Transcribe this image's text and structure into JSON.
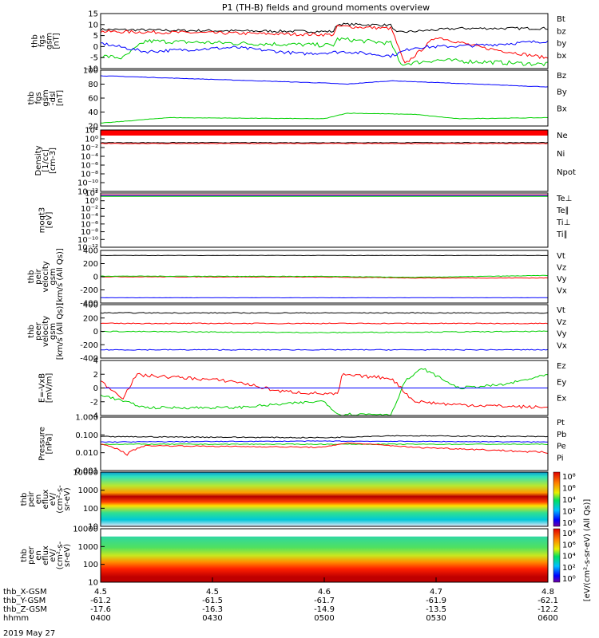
{
  "title": "P1 (TH-B) fields and ground moments overview",
  "colors": {
    "black": "#000000",
    "red": "#ff0000",
    "green": "#00d000",
    "blue": "#0000ff",
    "yellow": "#d8d000"
  },
  "panels": [
    {
      "key": "fgs",
      "ylabel": [
        "thb",
        "fgs",
        "gsm",
        "[nT]"
      ],
      "ticks": [
        "15",
        "10",
        "5",
        "0",
        "-5",
        "-10"
      ],
      "legend": [
        {
          "t": "Bt",
          "c": "black"
        },
        {
          "t": "bz",
          "c": "red"
        },
        {
          "t": "by",
          "c": "green"
        },
        {
          "t": "bx",
          "c": "blue"
        }
      ]
    },
    {
      "key": "fgsdsl",
      "ylabel": [
        "thb",
        "fgs",
        "gsm",
        "-dsl",
        "[nT]"
      ],
      "ticks": [
        "100",
        "80",
        "60",
        "40",
        "20"
      ],
      "legend": [
        {
          "t": "Bz",
          "c": "red"
        },
        {
          "t": "By",
          "c": "green"
        },
        {
          "t": "Bx",
          "c": "blue"
        }
      ]
    },
    {
      "key": "density",
      "ylabel": [
        "Density",
        "[1/cc]",
        "[cm-3]"
      ],
      "ticks": [
        "10²",
        "10⁰",
        "10⁻²",
        "10⁻⁴",
        "10⁻⁶",
        "10⁻⁸",
        "10⁻¹⁰",
        "10⁻¹²"
      ],
      "legend": [
        {
          "t": "Ne",
          "c": "red"
        },
        {
          "t": "Ni",
          "c": "black"
        },
        {
          "t": "Npot",
          "c": "blue"
        }
      ]
    },
    {
      "key": "temp",
      "ylabel": [
        "moqt3",
        "[eV]"
      ],
      "ticks": [
        "10²",
        "10⁰",
        "10⁻²",
        "10⁻⁴",
        "10⁻⁶",
        "10⁻⁸",
        "10⁻¹⁰",
        "10⁻¹²"
      ],
      "legend": [
        {
          "t": "Te⊥",
          "c": "red"
        },
        {
          "t": "Te∥",
          "c": "black"
        },
        {
          "t": "Ti⊥",
          "c": "yellow"
        },
        {
          "t": "Ti∥",
          "c": "green"
        }
      ]
    },
    {
      "key": "peir",
      "ylabel": [
        "thb",
        "peir",
        "velocity",
        "gsm",
        "[km/s (All Qs)]"
      ],
      "ticks": [
        "400",
        "200",
        "0",
        "-200",
        "-400"
      ],
      "legend": [
        {
          "t": "Vt",
          "c": "black"
        },
        {
          "t": "Vz",
          "c": "red"
        },
        {
          "t": "Vy",
          "c": "green"
        },
        {
          "t": "Vx",
          "c": "blue"
        }
      ]
    },
    {
      "key": "peer",
      "ylabel": [
        "thb",
        "peer",
        "velocity",
        "gsm",
        "[km/s (All Qs)]"
      ],
      "ticks": [
        "400",
        "200",
        "0",
        "-200",
        "-400"
      ],
      "legend": [
        {
          "t": "Vt",
          "c": "black"
        },
        {
          "t": "Vz",
          "c": "red"
        },
        {
          "t": "Vy",
          "c": "green"
        },
        {
          "t": "Vx",
          "c": "blue"
        }
      ]
    },
    {
      "key": "efield",
      "ylabel": [
        "E=-VxB",
        "[mV/m]"
      ],
      "ticks": [
        "4",
        "2",
        "0",
        "-2",
        "-4"
      ],
      "legend": [
        {
          "t": "Ez",
          "c": "red"
        },
        {
          "t": "Ey",
          "c": "green"
        },
        {
          "t": "Ex",
          "c": "blue"
        }
      ]
    },
    {
      "key": "pressure",
      "ylabel": [
        "Pressure",
        "[nPa]"
      ],
      "ticks": [
        "1.000",
        "0.100",
        "0.010",
        "0.001"
      ],
      "legend": [
        {
          "t": "Pt",
          "c": "black"
        },
        {
          "t": "Pb",
          "c": "red"
        },
        {
          "t": "Pe",
          "c": "green"
        },
        {
          "t": "Pi",
          "c": "blue"
        }
      ]
    },
    {
      "key": "peirspec",
      "ylabel": [
        "thb",
        "peir",
        "en",
        "eflux",
        "eV/",
        "(cm²-s-",
        "sr-eV)"
      ],
      "ticks": [
        "10000",
        "1000",
        "100",
        "10"
      ],
      "legend": []
    },
    {
      "key": "peerspec",
      "ylabel": [
        "thb",
        "peer",
        "en",
        "eflux",
        "eV/",
        "(cm²-s-",
        "sr-eV)"
      ],
      "ticks": [
        "10000",
        "1000",
        "100",
        "10"
      ],
      "legend": []
    }
  ],
  "colorbar": {
    "ticks": [
      "10⁸",
      "10⁶",
      "10⁴",
      "10²",
      "10⁰"
    ],
    "label": "[eV/(cm²-s-sr-eV) (All Qs)]"
  },
  "xaxis": {
    "rows": [
      {
        "label": "thb_X-GSM",
        "values": [
          "4.5",
          "4.5",
          "4.6",
          "4.7",
          "4.8"
        ]
      },
      {
        "label": "thb_Y-GSM",
        "values": [
          "-61.2",
          "-61.5",
          "-61.7",
          "-61.9",
          "-62.1"
        ]
      },
      {
        "label": "thb_Z-GSM",
        "values": [
          "-17.6",
          "-16.3",
          "-14.9",
          "-13.5",
          "-12.2"
        ]
      },
      {
        "label": "hhmm",
        "values": [
          "0400",
          "0430",
          "0500",
          "0530",
          "0600"
        ]
      }
    ],
    "date": "2019 May 27"
  },
  "chart_data": [
    {
      "type": "line",
      "title": "P1 (TH-B) fields and ground moments overview",
      "ylabel": "thb fgs gsm [nT]",
      "ylim": [
        -10,
        15
      ],
      "x": [
        "0400",
        "0430",
        "0500",
        "0530",
        "0600"
      ],
      "series": [
        {
          "name": "Bt",
          "values": [
            9,
            8,
            7,
            11,
            8
          ]
        },
        {
          "name": "bz",
          "values": [
            8,
            7,
            6,
            10,
            -2
          ]
        },
        {
          "name": "by",
          "values": [
            -3,
            1,
            -1,
            4,
            -8
          ]
        },
        {
          "name": "bx",
          "values": [
            2,
            0,
            -2,
            -3,
            3
          ]
        }
      ]
    },
    {
      "type": "line",
      "ylabel": "thb fgs gsm-dsl [nT]",
      "ylim": [
        10,
        100
      ],
      "x": [
        "0400",
        "0430",
        "0500",
        "0530",
        "0600"
      ],
      "series": [
        {
          "name": "Bx",
          "values": [
            92,
            86,
            80,
            82,
            75
          ]
        },
        {
          "name": "By",
          "values": [
            15,
            22,
            20,
            30,
            20
          ]
        }
      ]
    },
    {
      "type": "line",
      "ylabel": "Density [1/cc] [cm-3]",
      "ylim": [
        1e-12,
        100
      ],
      "log": true,
      "x": [
        "0400",
        "0430",
        "0500",
        "0530",
        "0600"
      ],
      "series": [
        {
          "name": "Ne",
          "values": [
            0.3,
            0.3,
            0.3,
            0.3,
            0.3
          ]
        },
        {
          "name": "Ni",
          "values": [
            0.4,
            0.4,
            0.4,
            0.4,
            0.4
          ]
        }
      ]
    },
    {
      "type": "line",
      "ylabel": "moqt3 [eV]",
      "ylim": [
        1e-12,
        100
      ],
      "log": true,
      "x": [
        "0400",
        "0430",
        "0500",
        "0530",
        "0600"
      ],
      "series": [
        {
          "name": "Ti∥",
          "values": [
            5,
            5,
            5,
            5,
            5
          ]
        }
      ]
    },
    {
      "type": "line",
      "ylabel": "thb peir velocity gsm [km/s (All Qs)]",
      "ylim": [
        -400,
        400
      ],
      "x": [
        "0400",
        "0430",
        "0500",
        "0530",
        "0600"
      ],
      "series": [
        {
          "name": "Vt",
          "values": [
            330,
            330,
            330,
            330,
            330
          ]
        },
        {
          "name": "Vz",
          "values": [
            0,
            0,
            -10,
            -20,
            -20
          ]
        },
        {
          "name": "Vy",
          "values": [
            10,
            20,
            10,
            -10,
            20
          ]
        },
        {
          "name": "Vx",
          "values": [
            -330,
            -330,
            -330,
            -330,
            -330
          ]
        }
      ]
    },
    {
      "type": "line",
      "ylabel": "thb peer velocity gsm [km/s (All Qs)]",
      "ylim": [
        -400,
        400
      ],
      "x": [
        "0400",
        "0430",
        "0500",
        "0530",
        "0600"
      ],
      "series": [
        {
          "name": "Vt",
          "values": [
            300,
            290,
            290,
            290,
            280
          ]
        },
        {
          "name": "Vz",
          "values": [
            130,
            120,
            130,
            120,
            120
          ]
        },
        {
          "name": "Vy",
          "values": [
            0,
            -30,
            -10,
            -10,
            0
          ]
        },
        {
          "name": "Vx",
          "values": [
            -290,
            -290,
            -290,
            -290,
            -290
          ]
        }
      ]
    },
    {
      "type": "line",
      "ylabel": "E=-VxB [mV/m]",
      "ylim": [
        -4,
        4
      ],
      "x": [
        "0400",
        "0430",
        "0500",
        "0530",
        "0600"
      ],
      "series": [
        {
          "name": "Ez",
          "values": [
            1.2,
            0.5,
            -1.5,
            2.5,
            -3
          ]
        },
        {
          "name": "Ey",
          "values": [
            -3,
            -3,
            -4,
            -1,
            2
          ]
        },
        {
          "name": "Ex",
          "values": [
            0,
            0,
            0,
            0,
            0
          ]
        }
      ]
    },
    {
      "type": "line",
      "ylabel": "Pressure [nPa]",
      "ylim": [
        0.001,
        1
      ],
      "log": true,
      "x": [
        "0400",
        "0430",
        "0500",
        "0530",
        "0600"
      ],
      "series": [
        {
          "name": "Pt",
          "values": [
            0.08,
            0.07,
            0.07,
            0.09,
            0.08
          ]
        },
        {
          "name": "Pb",
          "values": [
            0.03,
            0.03,
            0.02,
            0.03,
            0.01
          ]
        },
        {
          "name": "Pe",
          "values": [
            0.03,
            0.03,
            0.03,
            0.03,
            0.03
          ]
        },
        {
          "name": "Pi",
          "values": [
            0.04,
            0.04,
            0.04,
            0.04,
            0.04
          ]
        }
      ]
    },
    {
      "type": "heatmap",
      "ylabel": "thb peir en eflux eV/(cm²-s-sr-eV)",
      "ylim": [
        5,
        20000
      ],
      "log": true,
      "x": [
        "0400",
        "0430",
        "0500",
        "0530",
        "0600"
      ]
    },
    {
      "type": "heatmap",
      "ylabel": "thb peer en eflux eV/(cm²-s-sr-eV)",
      "ylim": [
        5,
        20000
      ],
      "log": true,
      "x": [
        "0400",
        "0430",
        "0500",
        "0530",
        "0600"
      ]
    }
  ]
}
